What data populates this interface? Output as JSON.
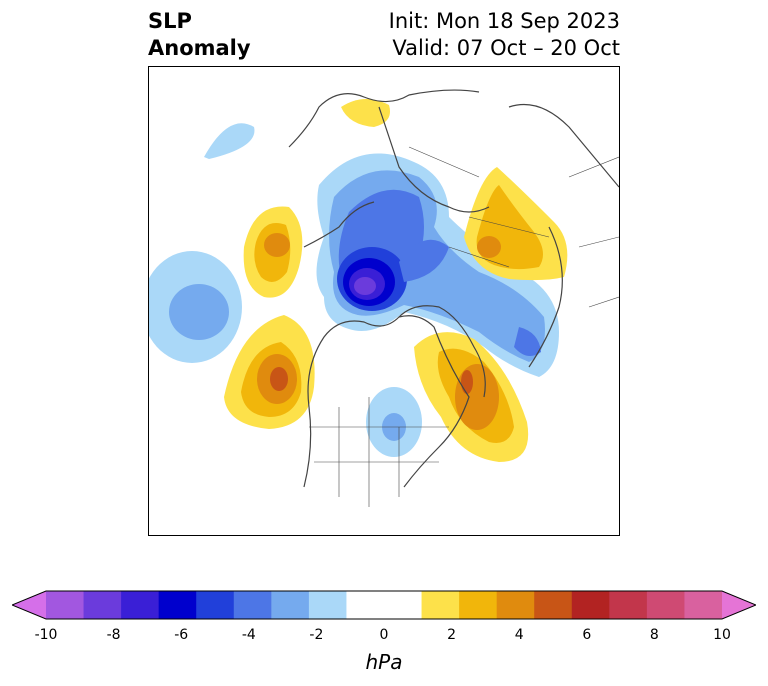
{
  "title": {
    "left_line1": "SLP",
    "left_line2": "Anomaly",
    "right_line1": "Init: Mon 18 Sep 2023",
    "right_line2": "Valid: 07 Oct – 20 Oct"
  },
  "colorbar": {
    "unit": "hPa",
    "min": -10,
    "max": 10,
    "step": 1,
    "tick_labels": [
      "-10",
      "-8",
      "-6",
      "-4",
      "-2",
      "0",
      "2",
      "4",
      "6",
      "8",
      "10"
    ],
    "colors": [
      "#d56fe9",
      "#a257e0",
      "#6b3bdc",
      "#3a1fd6",
      "#0000cd",
      "#2140da",
      "#4d76e6",
      "#75aaee",
      "#aad8f8",
      "#ffffff",
      "#ffffff",
      "#fde14a",
      "#f1b60b",
      "#e08b0e",
      "#c85516",
      "#b22322",
      "#c2364b",
      "#cf4a73",
      "#d9619f",
      "#e574d6"
    ],
    "extend": "both"
  },
  "map": {
    "projection": "north-polar-stereographic",
    "field": "sea-level-pressure-anomaly"
  }
}
